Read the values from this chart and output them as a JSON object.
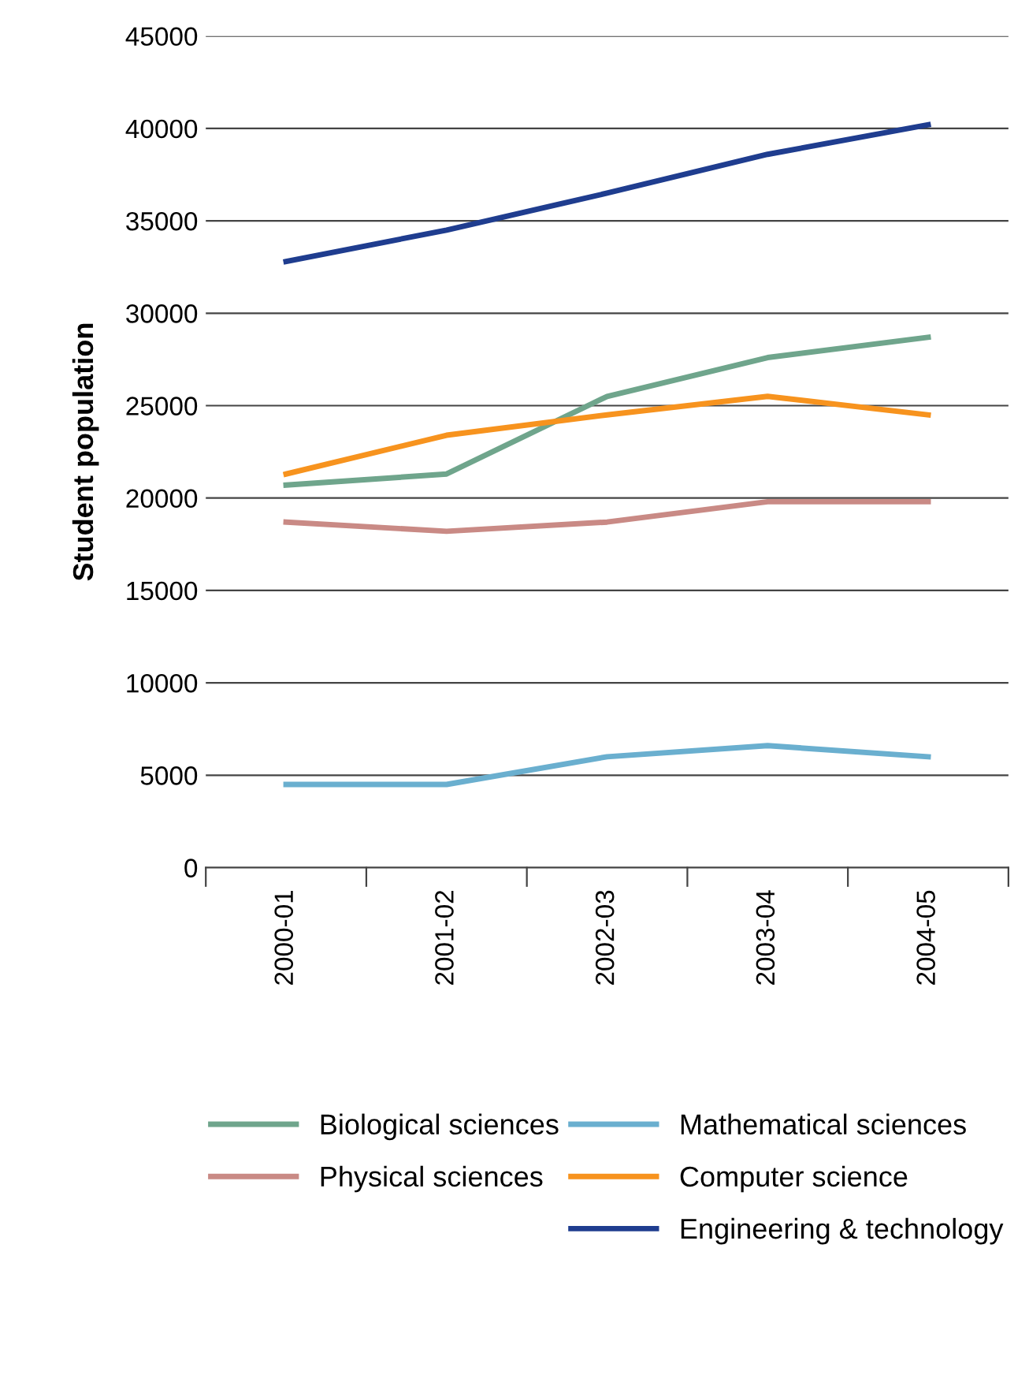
{
  "chart_data": {
    "type": "line",
    "ylabel": "Student population",
    "categories": [
      "2000-01",
      "2001-02",
      "2002-03",
      "2003-04",
      "2004-05"
    ],
    "series": [
      {
        "name": "Biological sciences",
        "color": "#6fa58c",
        "values": [
          20700,
          21300,
          25500,
          27600,
          28700
        ]
      },
      {
        "name": "Mathematical sciences",
        "color": "#6aafcf",
        "values": [
          4500,
          4500,
          6000,
          6600,
          6000
        ]
      },
      {
        "name": "Physical sciences",
        "color": "#c98a85",
        "values": [
          18700,
          18200,
          18700,
          19800,
          19800
        ]
      },
      {
        "name": "Computer science",
        "color": "#f7931e",
        "values": [
          21300,
          23400,
          24500,
          25500,
          24500
        ]
      },
      {
        "name": "Engineering & technology",
        "color": "#1f3d8f",
        "values": [
          32800,
          34500,
          36500,
          38600,
          40200
        ]
      }
    ],
    "ylim": [
      0,
      45000
    ],
    "yticks": [
      0,
      5000,
      10000,
      15000,
      20000,
      25000,
      30000,
      35000,
      40000,
      45000
    ],
    "grid": "y",
    "legend": "bottom",
    "marker": "none",
    "line_style": "solid"
  }
}
